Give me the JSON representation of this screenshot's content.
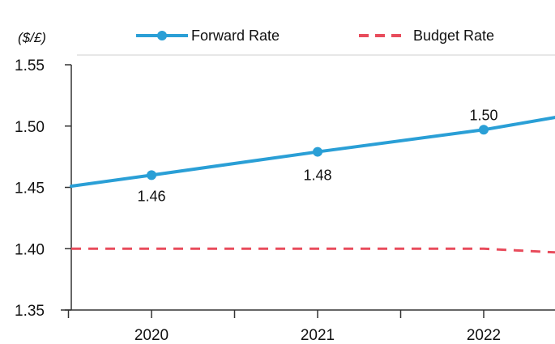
{
  "chart_data": {
    "type": "line",
    "unit_label": "($/£)",
    "x": [
      2019.5,
      2020,
      2021,
      2022,
      2022.5
    ],
    "categories": [
      "2020",
      "2021",
      "2022"
    ],
    "ylim": [
      1.35,
      1.55
    ],
    "yticks": [
      "1.35",
      "1.40",
      "1.45",
      "1.50",
      "1.55"
    ],
    "grid": false,
    "legend_position": "top",
    "series": [
      {
        "name": "Forward Rate",
        "style": "solid-with-markers",
        "color": "#2a9fd6",
        "values": [
          1.451,
          1.46,
          1.479,
          1.497,
          1.507
        ],
        "data_labels": [
          "1.46",
          "1.48",
          "1.50"
        ]
      },
      {
        "name": "Budget Rate",
        "style": "dashed",
        "color": "#e84c5c",
        "values": [
          1.4,
          1.4,
          1.4,
          1.4,
          1.397
        ]
      }
    ]
  }
}
